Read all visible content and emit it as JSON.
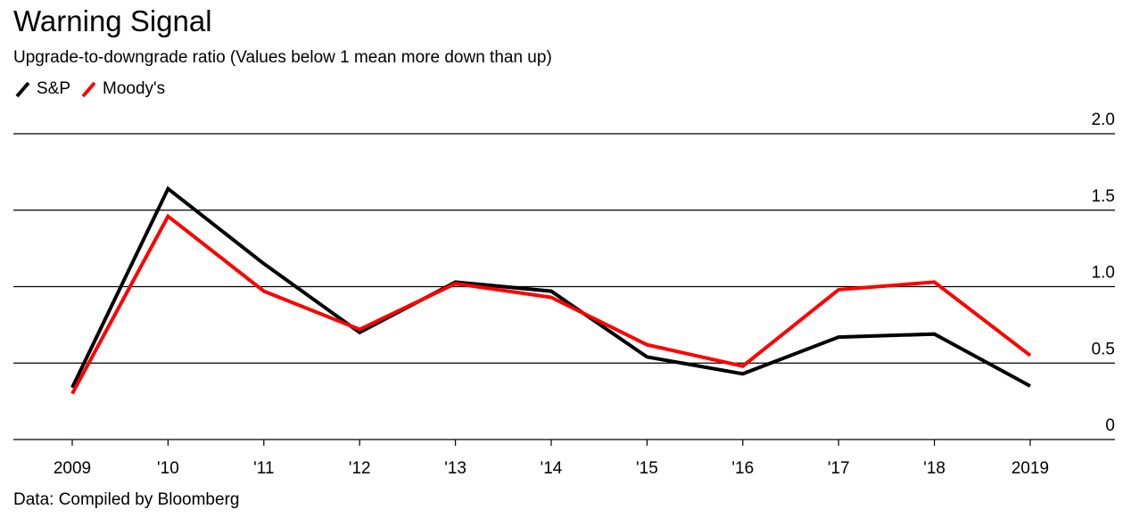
{
  "chart_data": {
    "type": "line",
    "title": "Warning Signal",
    "subtitle": "Upgrade-to-downgrade ratio (Values below 1 mean more down than up)",
    "source": "Data: Compiled by Bloomberg",
    "categories": [
      "2009",
      "'10",
      "'11",
      "'12",
      "'13",
      "'14",
      "'15",
      "'16",
      "'17",
      "'18",
      "2019"
    ],
    "series": [
      {
        "name": "S&P",
        "color": "#000000",
        "values": [
          0.34,
          1.64,
          1.15,
          0.7,
          1.03,
          0.97,
          0.54,
          0.43,
          0.67,
          0.69,
          0.35
        ]
      },
      {
        "name": "Moody's",
        "color": "#ff0000",
        "values": [
          0.3,
          1.46,
          0.97,
          0.72,
          1.02,
          0.93,
          0.62,
          0.48,
          0.98,
          1.03,
          0.55
        ]
      }
    ],
    "y_ticks": [
      "2.0",
      "1.5",
      "1.0",
      "0.5",
      "0"
    ],
    "ylim": [
      0,
      2.0
    ],
    "grid": true,
    "y_axis_position": "right",
    "legend_position": "top-left"
  }
}
